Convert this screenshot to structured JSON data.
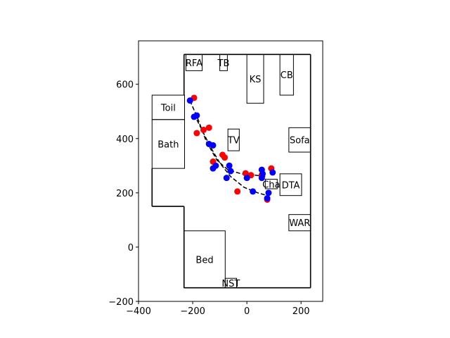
{
  "chart_data": {
    "type": "scatter",
    "xlim": [
      -400,
      280
    ],
    "ylim": [
      -200,
      760
    ],
    "xticks": [
      -400,
      -200,
      0,
      200
    ],
    "yticks": [
      -200,
      0,
      200,
      400,
      600
    ],
    "xtick_labels": [
      "−400",
      "−200",
      "0",
      "200"
    ],
    "ytick_labels": [
      "−200",
      "0",
      "200",
      "400",
      "600"
    ],
    "grid": false,
    "walls": [
      [
        [
          -232,
          710
        ],
        [
          235,
          710
        ]
      ],
      [
        [
          235,
          710
        ],
        [
          235,
          -150
        ]
      ],
      [
        [
          235,
          -150
        ],
        [
          -232,
          -150
        ]
      ],
      [
        [
          -232,
          -150
        ],
        [
          -232,
          150
        ]
      ],
      [
        [
          -232,
          150
        ],
        [
          -350,
          150
        ]
      ],
      [
        [
          -350,
          150
        ],
        [
          -350,
          290
        ]
      ],
      [
        [
          -232,
          560
        ],
        [
          -232,
          710
        ]
      ]
    ],
    "rooms": [
      {
        "label": "RFA",
        "x0": -225,
        "y0": 650,
        "x1": -165,
        "y1": 710
      },
      {
        "label": "TB",
        "x0": -100,
        "y0": 650,
        "x1": -72,
        "y1": 710
      },
      {
        "label": "KS",
        "x0": 0,
        "y0": 530,
        "x1": 62,
        "y1": 710
      },
      {
        "label": "CB",
        "x0": 122,
        "y0": 560,
        "x1": 172,
        "y1": 710
      },
      {
        "label": "Toil",
        "x0": -350,
        "y0": 470,
        "x1": -230,
        "y1": 560
      },
      {
        "label": "Bath",
        "x0": -350,
        "y0": 290,
        "x1": -230,
        "y1": 470
      },
      {
        "label": "TV",
        "x0": -70,
        "y0": 355,
        "x1": -28,
        "y1": 435
      },
      {
        "label": "Sofa",
        "x0": 155,
        "y0": 350,
        "x1": 235,
        "y1": 440
      },
      {
        "label": "Cha",
        "x0": 68,
        "y0": 215,
        "x1": 112,
        "y1": 250
      },
      {
        "label": "DTA",
        "x0": 122,
        "y0": 190,
        "x1": 202,
        "y1": 270
      },
      {
        "label": "WAR",
        "x0": 155,
        "y0": 60,
        "x1": 235,
        "y1": 120
      },
      {
        "label": "Bed",
        "x0": -232,
        "y0": -150,
        "x1": -80,
        "y1": 60
      },
      {
        "label": "NST",
        "x0": -80,
        "y0": -150,
        "x1": -38,
        "y1": -115
      }
    ],
    "paths": [
      {
        "color": "#000000",
        "style": "dashed",
        "points": [
          [
            -210,
            540
          ],
          [
            -180,
            470
          ],
          [
            -150,
            390
          ],
          [
            -110,
            320
          ],
          [
            -70,
            285
          ],
          [
            -20,
            270
          ],
          [
            30,
            265
          ],
          [
            70,
            260
          ]
        ]
      },
      {
        "color": "#000000",
        "style": "dashed",
        "points": [
          [
            -195,
            490
          ],
          [
            -165,
            430
          ],
          [
            -135,
            370
          ],
          [
            -100,
            310
          ],
          [
            -60,
            260
          ],
          [
            -10,
            220
          ],
          [
            40,
            200
          ],
          [
            75,
            190
          ]
        ]
      }
    ],
    "series": [
      {
        "color": "#ff0000",
        "points": [
          [
            -195,
            550
          ],
          [
            -185,
            420
          ],
          [
            -160,
            432
          ],
          [
            -140,
            440
          ],
          [
            -125,
            315
          ],
          [
            -90,
            340
          ],
          [
            -82,
            330
          ],
          [
            -35,
            205
          ],
          [
            -5,
            272
          ],
          [
            15,
            265
          ],
          [
            55,
            265
          ],
          [
            90,
            290
          ],
          [
            75,
            175
          ]
        ]
      },
      {
        "color": "#0000ff",
        "points": [
          [
            -210,
            540
          ],
          [
            -195,
            480
          ],
          [
            -185,
            485
          ],
          [
            -140,
            380
          ],
          [
            -125,
            375
          ],
          [
            -125,
            290
          ],
          [
            -115,
            300
          ],
          [
            -75,
            255
          ],
          [
            -65,
            300
          ],
          [
            -60,
            280
          ],
          [
            0,
            255
          ],
          [
            22,
            205
          ],
          [
            55,
            285
          ],
          [
            55,
            255
          ],
          [
            58,
            270
          ],
          [
            75,
            180
          ],
          [
            80,
            200
          ],
          [
            95,
            275
          ]
        ]
      }
    ]
  }
}
